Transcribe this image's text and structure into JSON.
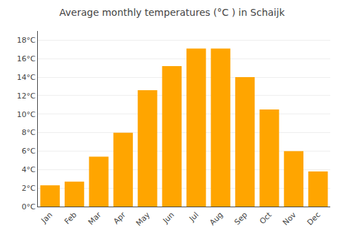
{
  "chart_data": {
    "type": "bar",
    "title": "Average monthly temperatures (°C ) in Schaijk",
    "categories": [
      "Jan",
      "Feb",
      "Mar",
      "Apr",
      "May",
      "Jun",
      "Jul",
      "Aug",
      "Sep",
      "Oct",
      "Nov",
      "Dec"
    ],
    "values": [
      2.3,
      2.7,
      5.4,
      8.0,
      12.6,
      15.2,
      17.1,
      17.1,
      14.0,
      10.5,
      6.0,
      3.8
    ],
    "color": "#FFA500",
    "ylim": [
      0,
      19
    ],
    "yticks": [
      {
        "value": 0,
        "label": "0°C"
      },
      {
        "value": 2,
        "label": "2°C"
      },
      {
        "value": 4,
        "label": "4°C"
      },
      {
        "value": 6,
        "label": "6°C"
      },
      {
        "value": 8,
        "label": "8°C"
      },
      {
        "value": 10,
        "label": "10°C"
      },
      {
        "value": 12,
        "label": "12°C"
      },
      {
        "value": 14,
        "label": "14°C"
      },
      {
        "value": 16,
        "label": "16°C"
      },
      {
        "value": 18,
        "label": "18°C"
      }
    ],
    "grid": true
  }
}
